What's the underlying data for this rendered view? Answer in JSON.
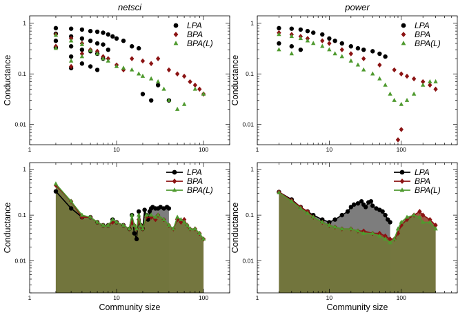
{
  "colors": {
    "LPA": "#000000",
    "BPA": "#8b1313",
    "BPA(L)": "#4f9a2f",
    "fill_LPA": "#7d7d7d",
    "fill_BPA": "#8e3b25",
    "fill_BPAL": "#6f7a3e",
    "shade_light": "#9a8f62",
    "shade_dark": "#595629"
  },
  "chart_data": [
    {
      "id": "netsci-scatter",
      "type": "scatter",
      "title": "netsci",
      "xlabel": "",
      "ylabel": "Conductance",
      "x_scale": "log",
      "y_scale": "log",
      "xlim": [
        1,
        200
      ],
      "ylim": [
        0.004,
        1.4
      ],
      "x_ticks": [
        {
          "v": 1,
          "label": "1"
        },
        {
          "v": 10,
          "label": "10"
        },
        {
          "v": 100,
          "label": "100"
        }
      ],
      "y_ticks": [
        {
          "v": 1,
          "label": "1"
        },
        {
          "v": 0.1,
          "label": "0.1"
        },
        {
          "v": 0.01,
          "label": "0.01"
        }
      ],
      "legend": [
        "LPA",
        "BPA",
        "BPA(L)"
      ],
      "legend_position": "top-right",
      "series": [
        {
          "name": "LPA",
          "marker": "circle",
          "x": [
            2,
            2,
            2,
            2,
            3,
            3,
            3,
            3,
            3,
            4,
            4,
            4,
            4,
            5,
            5,
            5,
            5,
            6,
            6,
            6,
            6,
            7,
            7,
            7,
            8,
            8,
            9,
            10,
            12,
            15,
            18,
            20,
            25,
            30,
            40
          ],
          "y": [
            0.8,
            0.62,
            0.45,
            0.33,
            0.78,
            0.55,
            0.35,
            0.22,
            0.13,
            0.75,
            0.5,
            0.3,
            0.16,
            0.7,
            0.45,
            0.28,
            0.14,
            0.68,
            0.4,
            0.25,
            0.12,
            0.65,
            0.38,
            0.2,
            0.6,
            0.3,
            0.55,
            0.5,
            0.45,
            0.35,
            0.32,
            0.04,
            0.03,
            0.06,
            0.03
          ]
        },
        {
          "name": "BPA",
          "marker": "diamond",
          "x": [
            2,
            2,
            3,
            3,
            4,
            4,
            5,
            6,
            7,
            8,
            10,
            12,
            15,
            20,
            25,
            30,
            40,
            50,
            60,
            70,
            80,
            90,
            100
          ],
          "y": [
            0.6,
            0.35,
            0.5,
            0.14,
            0.4,
            0.25,
            0.3,
            0.28,
            0.22,
            0.2,
            0.15,
            0.12,
            0.2,
            0.18,
            0.16,
            0.2,
            0.12,
            0.1,
            0.09,
            0.07,
            0.06,
            0.05,
            0.04
          ]
        },
        {
          "name": "BPA(L)",
          "marker": "triangle",
          "x": [
            2,
            2,
            3,
            3,
            4,
            4,
            5,
            6,
            7,
            8,
            10,
            12,
            15,
            18,
            20,
            25,
            30,
            35,
            40,
            50,
            60,
            80,
            100
          ],
          "y": [
            0.58,
            0.32,
            0.45,
            0.18,
            0.38,
            0.22,
            0.29,
            0.25,
            0.2,
            0.18,
            0.14,
            0.13,
            0.12,
            0.1,
            0.09,
            0.08,
            0.07,
            0.05,
            0.03,
            0.02,
            0.025,
            0.05,
            0.04
          ]
        }
      ]
    },
    {
      "id": "power-scatter",
      "type": "scatter",
      "title": "power",
      "xlabel": "",
      "ylabel": "Conductance",
      "x_scale": "log",
      "y_scale": "log",
      "xlim": [
        1,
        600
      ],
      "ylim": [
        0.004,
        1.4
      ],
      "x_ticks": [
        {
          "v": 1,
          "label": "1"
        },
        {
          "v": 10,
          "label": "10"
        },
        {
          "v": 100,
          "label": "100"
        }
      ],
      "y_ticks": [
        {
          "v": 1,
          "label": "1"
        },
        {
          "v": 0.1,
          "label": "0.1"
        },
        {
          "v": 0.01,
          "label": "0.01"
        }
      ],
      "legend": [
        "LPA",
        "BPA",
        "BPA(L)"
      ],
      "legend_position": "top-right",
      "series": [
        {
          "name": "LPA",
          "marker": "circle",
          "x": [
            2,
            2,
            3,
            3,
            4,
            4,
            5,
            6,
            8,
            10,
            12,
            15,
            20,
            25,
            30,
            40,
            50,
            60
          ],
          "y": [
            0.8,
            0.4,
            0.78,
            0.35,
            0.75,
            0.3,
            0.7,
            0.65,
            0.6,
            0.5,
            0.45,
            0.4,
            0.35,
            0.32,
            0.3,
            0.28,
            0.25,
            0.22
          ]
        },
        {
          "name": "BPA",
          "marker": "diamond",
          "x": [
            2,
            3,
            4,
            5,
            8,
            10,
            15,
            20,
            30,
            50,
            80,
            100,
            120,
            150,
            200,
            250,
            300,
            100,
            90
          ],
          "y": [
            0.65,
            0.6,
            0.55,
            0.5,
            0.45,
            0.4,
            0.3,
            0.25,
            0.2,
            0.15,
            0.12,
            0.1,
            0.09,
            0.08,
            0.07,
            0.06,
            0.05,
            0.008,
            0.005
          ]
        },
        {
          "name": "BPA(L)",
          "marker": "triangle",
          "x": [
            2,
            2,
            3,
            3,
            4,
            5,
            6,
            8,
            10,
            12,
            15,
            20,
            25,
            30,
            40,
            50,
            60,
            70,
            80,
            100,
            120,
            150,
            200,
            250,
            300
          ],
          "y": [
            0.6,
            0.3,
            0.55,
            0.25,
            0.5,
            0.45,
            0.4,
            0.35,
            0.3,
            0.25,
            0.22,
            0.18,
            0.15,
            0.12,
            0.1,
            0.08,
            0.06,
            0.04,
            0.03,
            0.025,
            0.03,
            0.04,
            0.06,
            0.07,
            0.07
          ]
        }
      ]
    },
    {
      "id": "netsci-profile",
      "type": "area",
      "title": "",
      "xlabel": "Community size",
      "ylabel": "Conductance",
      "x_scale": "log",
      "y_scale": "log",
      "xlim": [
        1,
        200
      ],
      "ylim": [
        0.002,
        1.4
      ],
      "x_ticks": [
        {
          "v": 1,
          "label": "1"
        },
        {
          "v": 10,
          "label": "10"
        },
        {
          "v": 100,
          "label": "100"
        }
      ],
      "y_ticks": [
        {
          "v": 1,
          "label": "1"
        },
        {
          "v": 0.1,
          "label": "0.1"
        },
        {
          "v": 0.01,
          "label": "0.01"
        }
      ],
      "legend": [
        "LPA",
        "BPA",
        "BPA(L)"
      ],
      "legend_position": "top-right",
      "series": [
        {
          "name": "LPA",
          "marker": "circle",
          "x": [
            2,
            3,
            4,
            5,
            6,
            7,
            8,
            9,
            10,
            12,
            14,
            15,
            16,
            17,
            18,
            19,
            20,
            21,
            22,
            23,
            24,
            25,
            26,
            28,
            30,
            32,
            35,
            38,
            40
          ],
          "y": [
            0.33,
            0.14,
            0.09,
            0.09,
            0.07,
            0.06,
            0.06,
            0.08,
            0.07,
            0.06,
            0.05,
            0.1,
            0.04,
            0.03,
            0.12,
            0.06,
            0.05,
            0.13,
            0.1,
            0.08,
            0.12,
            0.14,
            0.15,
            0.14,
            0.14,
            0.15,
            0.14,
            0.15,
            0.14
          ]
        },
        {
          "name": "BPA",
          "marker": "diamond",
          "x": [
            2,
            3,
            4,
            5,
            6,
            7,
            8,
            9,
            10,
            12,
            14,
            15,
            16,
            17,
            18,
            19,
            20,
            22,
            25,
            28,
            30,
            35,
            40,
            45,
            50,
            55,
            60,
            65,
            70,
            80,
            90,
            100
          ],
          "y": [
            0.45,
            0.2,
            0.09,
            0.09,
            0.07,
            0.06,
            0.06,
            0.07,
            0.07,
            0.06,
            0.05,
            0.07,
            0.06,
            0.05,
            0.08,
            0.06,
            0.05,
            0.09,
            0.09,
            0.08,
            0.1,
            0.08,
            0.06,
            0.05,
            0.08,
            0.07,
            0.08,
            0.06,
            0.05,
            0.05,
            0.04,
            0.03
          ]
        },
        {
          "name": "BPA(L)",
          "marker": "triangle",
          "x": [
            2,
            3,
            4,
            5,
            6,
            7,
            8,
            9,
            10,
            12,
            14,
            15,
            16,
            17,
            18,
            19,
            20,
            22,
            25,
            28,
            30,
            35,
            40,
            45,
            50,
            55,
            60,
            65,
            70,
            80,
            90,
            100
          ],
          "y": [
            0.48,
            0.2,
            0.1,
            0.09,
            0.07,
            0.06,
            0.06,
            0.08,
            0.07,
            0.06,
            0.05,
            0.1,
            0.06,
            0.05,
            0.1,
            0.06,
            0.05,
            0.1,
            0.1,
            0.09,
            0.1,
            0.08,
            0.06,
            0.05,
            0.09,
            0.08,
            0.07,
            0.06,
            0.05,
            0.05,
            0.04,
            0.03
          ]
        }
      ]
    },
    {
      "id": "power-profile",
      "type": "area",
      "title": "",
      "xlabel": "Community size",
      "ylabel": "Conductance",
      "x_scale": "log",
      "y_scale": "log",
      "xlim": [
        1,
        600
      ],
      "ylim": [
        0.002,
        1.4
      ],
      "x_ticks": [
        {
          "v": 1,
          "label": "1"
        },
        {
          "v": 10,
          "label": "10"
        },
        {
          "v": 100,
          "label": "100"
        }
      ],
      "y_ticks": [
        {
          "v": 1,
          "label": "1"
        },
        {
          "v": 0.1,
          "label": "0.1"
        },
        {
          "v": 0.01,
          "label": "0.01"
        }
      ],
      "legend": [
        "LPA",
        "BPA",
        "BPA(L)"
      ],
      "legend_position": "top-right",
      "series": [
        {
          "name": "LPA",
          "marker": "circle",
          "x": [
            2,
            3,
            4,
            5,
            6,
            8,
            10,
            12,
            15,
            18,
            20,
            22,
            25,
            28,
            30,
            32,
            35,
            38,
            40,
            45,
            50,
            55,
            60,
            65,
            70
          ],
          "y": [
            0.32,
            0.22,
            0.15,
            0.12,
            0.1,
            0.08,
            0.07,
            0.08,
            0.1,
            0.12,
            0.15,
            0.17,
            0.18,
            0.2,
            0.17,
            0.15,
            0.19,
            0.2,
            0.16,
            0.14,
            0.13,
            0.12,
            0.1,
            0.08,
            0.07
          ]
        },
        {
          "name": "BPA",
          "marker": "diamond",
          "x": [
            2,
            3,
            4,
            5,
            6,
            8,
            10,
            12,
            15,
            20,
            25,
            30,
            40,
            50,
            60,
            70,
            80,
            90,
            100,
            120,
            150,
            180,
            200,
            250,
            300
          ],
          "y": [
            0.32,
            0.21,
            0.15,
            0.12,
            0.09,
            0.07,
            0.06,
            0.055,
            0.05,
            0.05,
            0.045,
            0.045,
            0.04,
            0.04,
            0.035,
            0.03,
            0.03,
            0.04,
            0.06,
            0.08,
            0.1,
            0.12,
            0.1,
            0.08,
            0.06
          ]
        },
        {
          "name": "BPA(L)",
          "marker": "triangle",
          "x": [
            2,
            3,
            4,
            5,
            6,
            8,
            10,
            12,
            15,
            20,
            25,
            30,
            40,
            50,
            60,
            70,
            80,
            90,
            100,
            120,
            150,
            180,
            200,
            250,
            300
          ],
          "y": [
            0.31,
            0.2,
            0.14,
            0.11,
            0.09,
            0.07,
            0.06,
            0.055,
            0.05,
            0.05,
            0.045,
            0.04,
            0.04,
            0.035,
            0.03,
            0.025,
            0.03,
            0.05,
            0.07,
            0.09,
            0.1,
            0.09,
            0.07,
            0.07,
            0.05
          ]
        }
      ]
    }
  ]
}
